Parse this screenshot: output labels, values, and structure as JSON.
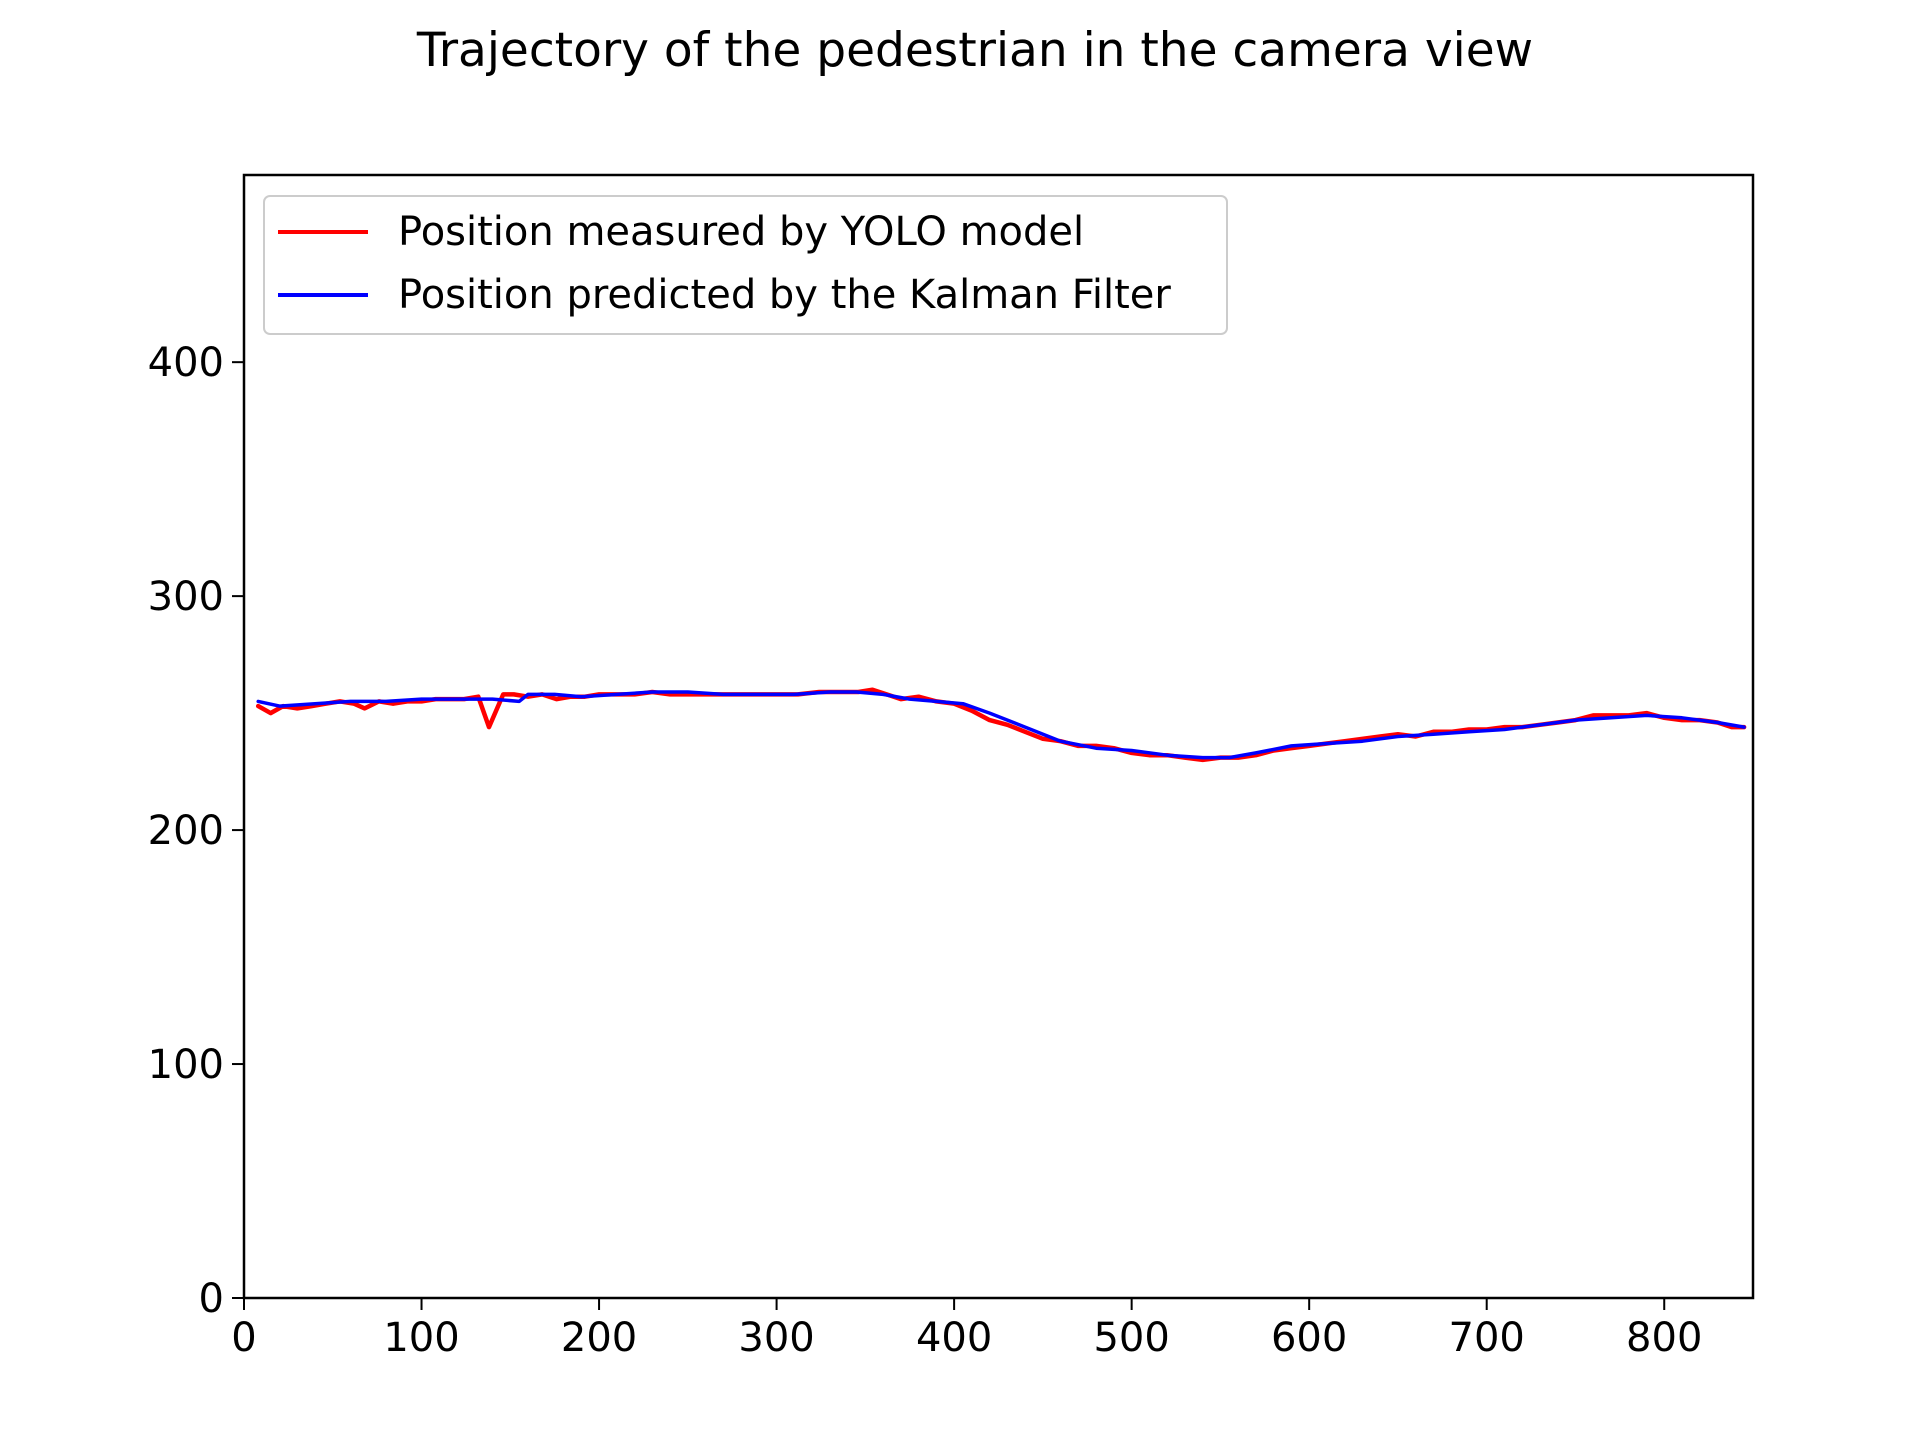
{
  "chart_data": {
    "type": "line",
    "title": "Trajectory of the pedestrian in the camera view",
    "xlabel": "",
    "ylabel": "",
    "xlim": [
      0,
      850
    ],
    "ylim": [
      0,
      480
    ],
    "xticks": [
      0,
      100,
      200,
      300,
      400,
      500,
      600,
      700,
      800
    ],
    "yticks": [
      0,
      100,
      200,
      300,
      400
    ],
    "grid": false,
    "legend_position": "upper-left",
    "series": [
      {
        "name": "Position measured by YOLO model",
        "color": "#ff0000",
        "x": [
          8,
          15,
          22,
          30,
          38,
          46,
          54,
          62,
          68,
          76,
          84,
          92,
          100,
          108,
          116,
          124,
          132,
          138,
          146,
          152,
          160,
          168,
          176,
          184,
          192,
          200,
          210,
          220,
          230,
          240,
          252,
          264,
          276,
          288,
          300,
          312,
          324,
          336,
          346,
          354,
          362,
          370,
          380,
          390,
          400,
          410,
          420,
          430,
          440,
          450,
          460,
          470,
          480,
          490,
          500,
          510,
          520,
          530,
          540,
          550,
          560,
          570,
          580,
          590,
          600,
          610,
          620,
          630,
          640,
          650,
          660,
          670,
          680,
          690,
          700,
          710,
          720,
          730,
          740,
          750,
          760,
          770,
          780,
          790,
          800,
          810,
          820,
          830,
          838,
          845
        ],
        "y": [
          253,
          250,
          253,
          252,
          253,
          254,
          255,
          254,
          252,
          255,
          254,
          255,
          255,
          256,
          256,
          256,
          257,
          244,
          258,
          258,
          257,
          258,
          256,
          257,
          257,
          258,
          258,
          258,
          259,
          258,
          258,
          258,
          258,
          258,
          258,
          258,
          259,
          259,
          259,
          260,
          258,
          256,
          257,
          255,
          254,
          251,
          247,
          245,
          242,
          239,
          238,
          236,
          236,
          235,
          233,
          232,
          232,
          231,
          230,
          231,
          231,
          232,
          234,
          235,
          236,
          237,
          238,
          239,
          240,
          241,
          240,
          242,
          242,
          243,
          243,
          244,
          244,
          245,
          246,
          247,
          249,
          249,
          249,
          250,
          248,
          247,
          247,
          246,
          244,
          244
        ]
      },
      {
        "name": "Position predicted by the Kalman Filter",
        "color": "#0000ff",
        "x": [
          8,
          20,
          40,
          60,
          80,
          100,
          120,
          140,
          155,
          160,
          175,
          190,
          210,
          230,
          250,
          270,
          290,
          310,
          330,
          345,
          360,
          375,
          390,
          405,
          420,
          440,
          460,
          480,
          500,
          520,
          540,
          555,
          570,
          590,
          610,
          630,
          650,
          670,
          690,
          710,
          730,
          750,
          770,
          790,
          810,
          830,
          845
        ],
        "y": [
          255,
          253,
          254,
          255,
          255,
          256,
          256,
          256,
          255,
          258,
          258,
          257,
          258,
          259,
          259,
          258,
          258,
          258,
          259,
          259,
          258,
          256,
          255,
          254,
          250,
          244,
          238,
          235,
          234,
          232,
          231,
          231,
          233,
          236,
          237,
          238,
          240,
          241,
          242,
          243,
          245,
          247,
          248,
          249,
          248,
          246,
          244
        ]
      }
    ]
  }
}
